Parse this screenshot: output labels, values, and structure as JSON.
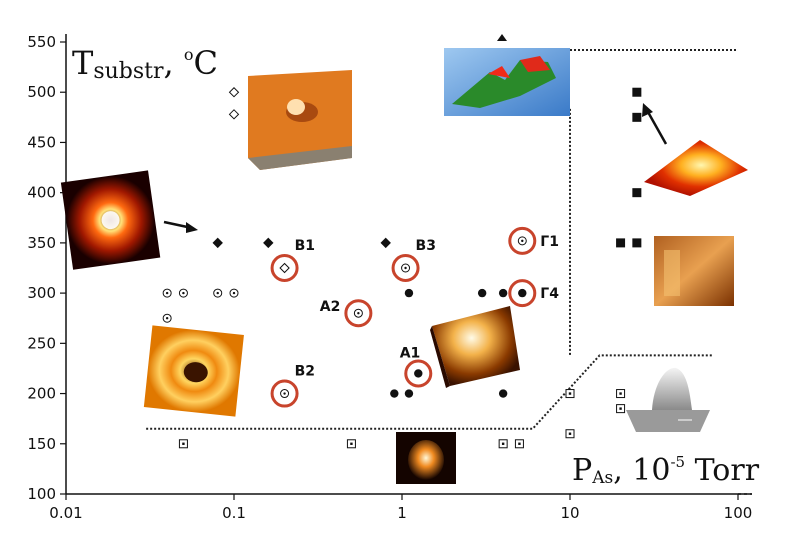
{
  "chart_data": {
    "type": "scatter",
    "title": "",
    "ylabel": {
      "main": "T",
      "sub": "substr",
      "rest": ", ",
      "sup": "o",
      "unit": "C"
    },
    "xlabel": {
      "main": "P",
      "sub": "As",
      "rest": ", 10",
      "sup": "-5",
      "unit": " Torr"
    },
    "x_scale": "log",
    "xlim": [
      0.01,
      100
    ],
    "ylim": [
      100,
      550
    ],
    "x_ticks": [
      {
        "value": 0.01,
        "label": "0.01"
      },
      {
        "value": 0.1,
        "label": "0.1"
      },
      {
        "value": 1,
        "label": "1"
      },
      {
        "value": 10,
        "label": "10"
      },
      {
        "value": 100,
        "label": "100"
      }
    ],
    "y_ticks": [
      {
        "value": 100,
        "label": "100"
      },
      {
        "value": 150,
        "label": "150"
      },
      {
        "value": 200,
        "label": "200"
      },
      {
        "value": 250,
        "label": "250"
      },
      {
        "value": 300,
        "label": "300"
      },
      {
        "value": 350,
        "label": "350"
      },
      {
        "value": 400,
        "label": "400"
      },
      {
        "value": 450,
        "label": "450"
      },
      {
        "value": 500,
        "label": "500"
      },
      {
        "value": 550,
        "label": "550"
      }
    ],
    "series": [
      {
        "marker": "open-diamond",
        "points": [
          [
            0.1,
            500
          ],
          [
            0.1,
            478
          ]
        ]
      },
      {
        "marker": "filled-diamond",
        "points": [
          [
            0.08,
            350
          ],
          [
            0.16,
            350
          ],
          [
            0.8,
            350
          ]
        ]
      },
      {
        "marker": "circle-dot",
        "points": [
          [
            0.04,
            300
          ],
          [
            0.05,
            300
          ],
          [
            0.08,
            300
          ],
          [
            0.1,
            300
          ],
          [
            0.04,
            275
          ]
        ]
      },
      {
        "marker": "filled-circle",
        "points": [
          [
            1.1,
            300
          ],
          [
            3,
            300
          ],
          [
            4,
            300
          ],
          [
            0.9,
            200
          ],
          [
            1.1,
            200
          ],
          [
            4,
            200
          ]
        ]
      },
      {
        "marker": "square-dot",
        "points": [
          [
            0.05,
            150
          ],
          [
            0.5,
            150
          ],
          [
            4,
            150
          ],
          [
            5,
            150
          ],
          [
            10,
            160
          ],
          [
            10,
            200
          ],
          [
            20,
            200
          ],
          [
            20,
            185
          ]
        ]
      },
      {
        "marker": "filled-square",
        "points": [
          [
            25,
            500
          ],
          [
            25,
            475
          ],
          [
            25,
            400
          ],
          [
            20,
            350
          ],
          [
            25,
            350
          ]
        ]
      }
    ],
    "labeled_points": [
      {
        "label": "B1",
        "x": 0.2,
        "y": 325,
        "marker": "open-diamond"
      },
      {
        "label": "B2",
        "x": 0.2,
        "y": 200,
        "marker": "circle-dot"
      },
      {
        "label": "B3",
        "x": 1.05,
        "y": 325,
        "marker": "circle-dot"
      },
      {
        "label": "A2",
        "x": 0.55,
        "y": 280,
        "marker": "circle-dot"
      },
      {
        "label": "A1",
        "x": 1.25,
        "y": 220,
        "marker": "filled-circle"
      },
      {
        "label": "Г1",
        "x": 5.2,
        "y": 352,
        "marker": "circle-dot"
      },
      {
        "label": "Г4",
        "x": 5.2,
        "y": 300,
        "marker": "filled-circle"
      }
    ],
    "boundary_lines": [
      {
        "style": "dotted",
        "points": [
          [
            0.03,
            165
          ],
          [
            6,
            165
          ],
          [
            15,
            238
          ],
          [
            70,
            238
          ]
        ]
      },
      {
        "style": "dotted",
        "points": [
          [
            2.2,
            485
          ],
          [
            10,
            485
          ],
          [
            10,
            238
          ]
        ]
      },
      {
        "style": "dotted",
        "points": [
          [
            10,
            542
          ],
          [
            100,
            542
          ]
        ]
      }
    ],
    "colors": {
      "highlight_ring": "#c8442c",
      "axis": "#111111",
      "marker": "#111111"
    }
  }
}
